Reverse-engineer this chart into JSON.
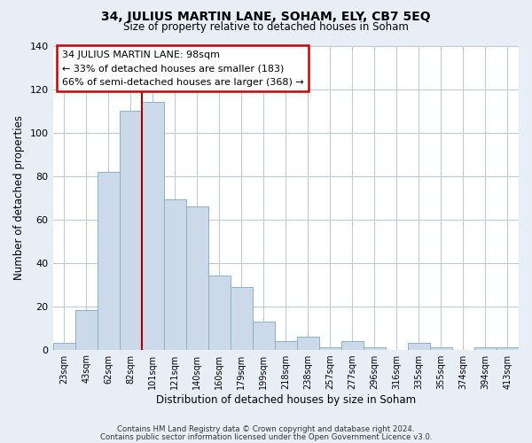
{
  "title": "34, JULIUS MARTIN LANE, SOHAM, ELY, CB7 5EQ",
  "subtitle": "Size of property relative to detached houses in Soham",
  "xlabel": "Distribution of detached houses by size in Soham",
  "ylabel": "Number of detached properties",
  "bar_labels": [
    "23sqm",
    "43sqm",
    "62sqm",
    "82sqm",
    "101sqm",
    "121sqm",
    "140sqm",
    "160sqm",
    "179sqm",
    "199sqm",
    "218sqm",
    "238sqm",
    "257sqm",
    "277sqm",
    "296sqm",
    "316sqm",
    "335sqm",
    "355sqm",
    "374sqm",
    "394sqm",
    "413sqm"
  ],
  "bar_values": [
    3,
    18,
    82,
    110,
    114,
    69,
    66,
    34,
    29,
    13,
    4,
    6,
    1,
    4,
    1,
    0,
    3,
    1,
    0,
    1,
    1
  ],
  "bar_color": "#ccd9e8",
  "bar_edge_color": "#8ab0cc",
  "vline_color": "#aa0000",
  "vline_x_index": 4,
  "ylim": [
    0,
    140
  ],
  "yticks": [
    0,
    20,
    40,
    60,
    80,
    100,
    120,
    140
  ],
  "annotation_title": "34 JULIUS MARTIN LANE: 98sqm",
  "annotation_line1": "← 33% of detached houses are smaller (183)",
  "annotation_line2": "66% of semi-detached houses are larger (368) →",
  "annotation_box_color": "#ffffff",
  "annotation_border_color": "#cc0000",
  "footer_line1": "Contains HM Land Registry data © Crown copyright and database right 2024.",
  "footer_line2": "Contains public sector information licensed under the Open Government Licence v3.0.",
  "bg_color": "#e8eef5",
  "plot_bg_color": "#ffffff",
  "grid_color": "#b8c8d8"
}
